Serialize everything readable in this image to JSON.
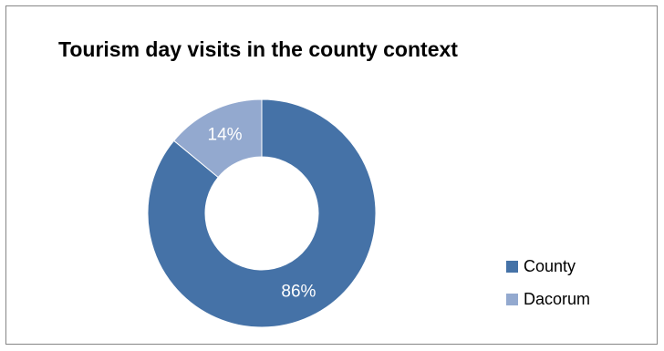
{
  "chart_data": {
    "type": "pie",
    "variant": "doughnut",
    "title": "Tourism day visits in the county context",
    "categories": [
      "County",
      "Dacorum"
    ],
    "values": [
      86,
      14
    ],
    "data_labels": [
      "86%",
      "14%"
    ],
    "colors": [
      "#4572a7",
      "#93a9cf"
    ],
    "label_color": "#ffffff",
    "legend_position": "right"
  }
}
